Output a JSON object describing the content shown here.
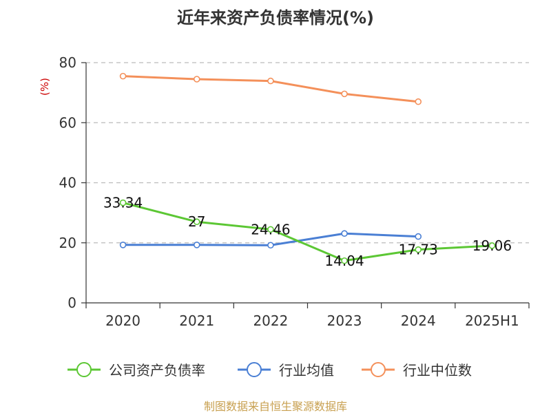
{
  "chart_data": {
    "type": "line",
    "title": "近年来资产负债率情况(%)",
    "ylabel": "(%)",
    "ylabel_color": "#cc0000",
    "categories": [
      "2020",
      "2021",
      "2022",
      "2023",
      "2024",
      "2025H1"
    ],
    "ylim": [
      0,
      80
    ],
    "yticks": [
      0,
      20,
      40,
      60,
      80
    ],
    "grid": true,
    "legend_position": "bottom",
    "series": [
      {
        "name": "公司资产负债率",
        "color": "#5cc734",
        "values": [
          33.34,
          27,
          24.46,
          14.04,
          17.73,
          19.06
        ],
        "labels": [
          "33.34",
          "27",
          "24.46",
          "14.04",
          "17.73",
          "19.06"
        ]
      },
      {
        "name": "行业均值",
        "color": "#4a7fd4",
        "values": [
          19.3,
          19.3,
          19.2,
          23.1,
          22.1,
          null
        ]
      },
      {
        "name": "行业中位数",
        "color": "#f4905a",
        "values": [
          75.5,
          74.5,
          73.9,
          69.6,
          67.0,
          null
        ]
      }
    ],
    "source": "制图数据来自恒生聚源数据库",
    "source_color": "#c8a050"
  }
}
